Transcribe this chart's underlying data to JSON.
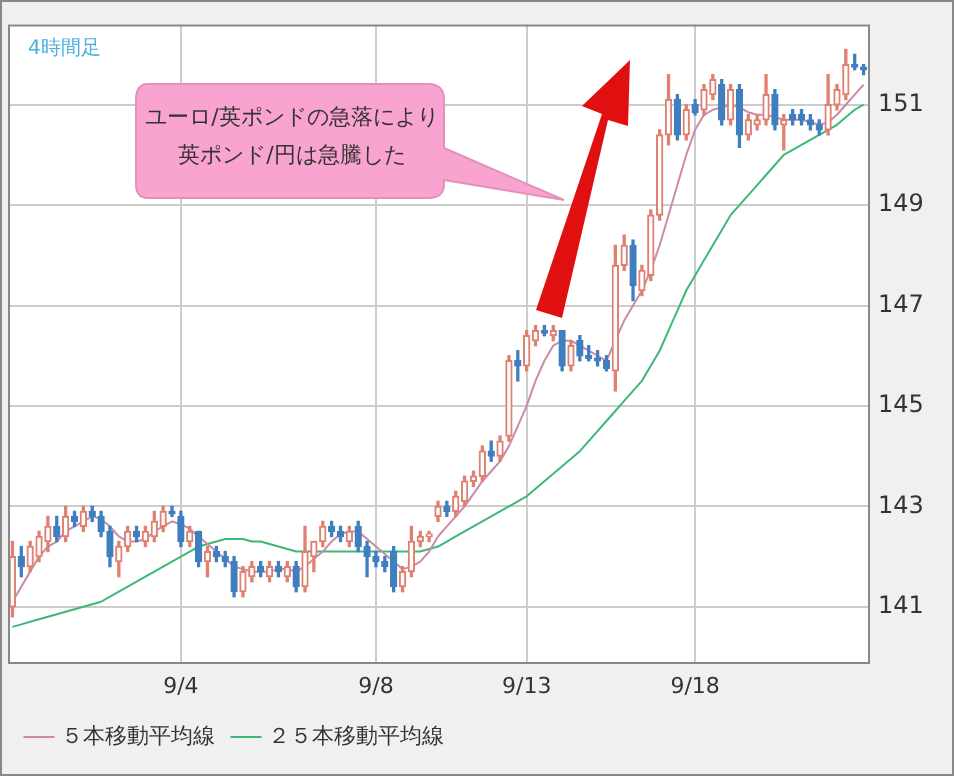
{
  "chart_data": {
    "type": "candlestick",
    "categories": [
      null,
      null,
      null,
      null,
      null,
      null,
      null,
      null,
      null,
      null,
      null,
      null,
      null,
      null,
      null,
      null,
      null,
      null,
      null,
      "9/4",
      null,
      null,
      null,
      null,
      null,
      null,
      null,
      null,
      null,
      null,
      null,
      null,
      null,
      null,
      null,
      null,
      null,
      null,
      null,
      null,
      null,
      "9/8",
      null,
      null,
      null,
      null,
      null,
      null,
      null,
      null,
      null,
      null,
      null,
      null,
      null,
      null,
      null,
      null,
      "9/13",
      null,
      null,
      null,
      null,
      null,
      null,
      null,
      null,
      null,
      null,
      null,
      null,
      null,
      null,
      null,
      null,
      null,
      null,
      "9/18",
      null,
      null,
      null,
      null,
      null,
      null,
      null,
      null,
      null,
      null,
      null,
      null,
      null,
      null,
      null,
      null,
      null,
      null,
      null
    ],
    "ohlc": [
      [
        141.0,
        142.3,
        140.8,
        142.0
      ],
      [
        142.0,
        142.2,
        141.6,
        141.8
      ],
      [
        141.8,
        142.3,
        141.7,
        142.2
      ],
      [
        142.0,
        142.5,
        141.9,
        142.4
      ],
      [
        142.3,
        142.8,
        142.1,
        142.6
      ],
      [
        142.6,
        142.8,
        142.3,
        142.4
      ],
      [
        142.4,
        143.0,
        142.3,
        142.8
      ],
      [
        142.8,
        142.9,
        142.6,
        142.7
      ],
      [
        142.6,
        143.0,
        142.5,
        142.9
      ],
      [
        142.9,
        143.0,
        142.7,
        142.8
      ],
      [
        142.8,
        142.9,
        142.4,
        142.5
      ],
      [
        142.5,
        142.6,
        141.8,
        142.0
      ],
      [
        141.9,
        142.3,
        141.6,
        142.2
      ],
      [
        142.2,
        142.6,
        142.1,
        142.5
      ],
      [
        142.5,
        142.6,
        142.3,
        142.4
      ],
      [
        142.3,
        142.6,
        142.2,
        142.5
      ],
      [
        142.4,
        142.9,
        142.3,
        142.7
      ],
      [
        142.6,
        143.0,
        142.5,
        142.9
      ],
      [
        142.9,
        143.0,
        142.8,
        142.85
      ],
      [
        142.8,
        142.9,
        142.2,
        142.3
      ],
      [
        142.3,
        142.6,
        142.2,
        142.5
      ],
      [
        142.5,
        142.5,
        141.8,
        141.9
      ],
      [
        141.9,
        142.2,
        141.6,
        142.1
      ],
      [
        142.1,
        142.2,
        141.9,
        142.0
      ],
      [
        142.0,
        142.1,
        141.8,
        141.9
      ],
      [
        141.9,
        142.0,
        141.2,
        141.3
      ],
      [
        141.3,
        141.8,
        141.2,
        141.7
      ],
      [
        141.6,
        141.9,
        141.5,
        141.8
      ],
      [
        141.8,
        141.9,
        141.6,
        141.7
      ],
      [
        141.6,
        141.9,
        141.5,
        141.8
      ],
      [
        141.8,
        141.9,
        141.6,
        141.7
      ],
      [
        141.6,
        141.9,
        141.5,
        141.8
      ],
      [
        141.8,
        141.9,
        141.3,
        141.4
      ],
      [
        141.4,
        142.6,
        141.3,
        142.1
      ],
      [
        142.0,
        142.3,
        141.7,
        142.3
      ],
      [
        142.3,
        142.7,
        142.2,
        142.6
      ],
      [
        142.6,
        142.7,
        142.4,
        142.5
      ],
      [
        142.5,
        142.6,
        142.3,
        142.4
      ],
      [
        142.3,
        142.6,
        142.2,
        142.5
      ],
      [
        142.6,
        142.7,
        142.1,
        142.2
      ],
      [
        142.2,
        142.3,
        141.6,
        142.0
      ],
      [
        142.0,
        142.1,
        141.8,
        141.9
      ],
      [
        141.9,
        142.0,
        141.7,
        141.8
      ],
      [
        142.1,
        142.2,
        141.3,
        141.4
      ],
      [
        141.4,
        141.8,
        141.3,
        141.7
      ],
      [
        141.7,
        142.6,
        141.6,
        142.3
      ],
      [
        142.3,
        142.5,
        142.2,
        142.4
      ],
      [
        142.4,
        142.5,
        142.3,
        142.45
      ],
      [
        142.8,
        143.1,
        142.7,
        143.0
      ],
      [
        143.0,
        143.1,
        142.8,
        142.9
      ],
      [
        142.9,
        143.3,
        142.8,
        143.2
      ],
      [
        143.1,
        143.6,
        143.0,
        143.5
      ],
      [
        143.5,
        143.7,
        143.4,
        143.6
      ],
      [
        143.6,
        144.2,
        143.5,
        144.1
      ],
      [
        144.1,
        144.3,
        143.9,
        144.0
      ],
      [
        144.0,
        144.4,
        143.9,
        144.3
      ],
      [
        144.4,
        146.0,
        144.3,
        145.9
      ],
      [
        145.9,
        146.1,
        145.5,
        145.8
      ],
      [
        145.8,
        146.5,
        145.7,
        146.4
      ],
      [
        146.3,
        146.6,
        146.2,
        146.5
      ],
      [
        146.5,
        146.6,
        146.4,
        146.45
      ],
      [
        146.4,
        146.6,
        146.3,
        146.5
      ],
      [
        146.5,
        146.5,
        145.7,
        145.8
      ],
      [
        145.8,
        146.3,
        145.7,
        146.2
      ],
      [
        146.3,
        146.4,
        145.9,
        146.0
      ],
      [
        146.0,
        146.2,
        145.9,
        145.95
      ],
      [
        145.95,
        146.1,
        145.8,
        145.9
      ],
      [
        145.9,
        146.0,
        145.7,
        145.75
      ],
      [
        145.7,
        148.2,
        145.3,
        147.8
      ],
      [
        147.8,
        148.4,
        147.7,
        148.2
      ],
      [
        148.2,
        148.3,
        147.1,
        147.4
      ],
      [
        147.3,
        147.8,
        147.2,
        147.7
      ],
      [
        147.6,
        148.9,
        147.5,
        148.8
      ],
      [
        148.8,
        150.5,
        148.7,
        150.4
      ],
      [
        150.4,
        151.6,
        150.2,
        151.1
      ],
      [
        151.1,
        151.2,
        150.3,
        150.4
      ],
      [
        150.4,
        151.0,
        150.3,
        150.9
      ],
      [
        151.0,
        151.1,
        150.8,
        150.85
      ],
      [
        150.9,
        151.4,
        150.8,
        151.3
      ],
      [
        151.2,
        151.6,
        151.1,
        151.5
      ],
      [
        151.4,
        151.5,
        150.6,
        150.7
      ],
      [
        150.7,
        151.4,
        150.6,
        151.3
      ],
      [
        151.3,
        151.4,
        150.15,
        150.4
      ],
      [
        150.4,
        150.8,
        150.3,
        150.7
      ],
      [
        150.6,
        150.8,
        150.5,
        150.7
      ],
      [
        150.7,
        151.6,
        150.6,
        151.2
      ],
      [
        151.2,
        151.3,
        150.5,
        150.6
      ],
      [
        150.6,
        150.8,
        150.1,
        150.7
      ],
      [
        150.8,
        150.9,
        150.6,
        150.7
      ],
      [
        150.8,
        150.9,
        150.6,
        150.7
      ],
      [
        150.7,
        150.8,
        150.5,
        150.6
      ],
      [
        150.6,
        150.7,
        150.4,
        150.5
      ],
      [
        150.5,
        151.6,
        150.4,
        151.0
      ],
      [
        151.0,
        151.4,
        150.9,
        151.3
      ],
      [
        151.2,
        152.1,
        151.1,
        151.8
      ],
      [
        151.8,
        152.0,
        151.7,
        151.75
      ],
      [
        151.75,
        151.8,
        151.6,
        151.7
      ]
    ],
    "colors": [
      "#e08070",
      "#3f7fbf",
      "#e08070",
      "#e08070",
      "#e08070",
      "#3f7fbf",
      "#e08070",
      "#3f7fbf",
      "#e08070",
      "#3f7fbf",
      "#3f7fbf",
      "#3f7fbf",
      "#e08070",
      "#e08070",
      "#3f7fbf",
      "#e08070",
      "#e08070",
      "#e08070",
      "#3f7fbf",
      "#3f7fbf",
      "#e08070",
      "#3f7fbf",
      "#e08070",
      "#3f7fbf",
      "#3f7fbf",
      "#3f7fbf",
      "#e08070",
      "#e08070",
      "#3f7fbf",
      "#e08070",
      "#3f7fbf",
      "#e08070",
      "#3f7fbf",
      "#e08070",
      "#e08070",
      "#e08070",
      "#3f7fbf",
      "#3f7fbf",
      "#e08070",
      "#3f7fbf",
      "#3f7fbf",
      "#3f7fbf",
      "#3f7fbf",
      "#3f7fbf",
      "#e08070",
      "#e08070",
      "#e08070",
      "#e08070",
      "#e08070",
      "#3f7fbf",
      "#e08070",
      "#e08070",
      "#e08070",
      "#e08070",
      "#3f7fbf",
      "#e08070",
      "#e08070",
      "#3f7fbf",
      "#e08070",
      "#e08070",
      "#3f7fbf",
      "#e08070",
      "#3f7fbf",
      "#e08070",
      "#3f7fbf",
      "#3f7fbf",
      "#3f7fbf",
      "#3f7fbf",
      "#e08070",
      "#e08070",
      "#3f7fbf",
      "#e08070",
      "#e08070",
      "#e08070",
      "#e08070",
      "#3f7fbf",
      "#e08070",
      "#3f7fbf",
      "#e08070",
      "#e08070",
      "#3f7fbf",
      "#e08070",
      "#3f7fbf",
      "#e08070",
      "#e08070",
      "#e08070",
      "#3f7fbf",
      "#e08070",
      "#3f7fbf",
      "#3f7fbf",
      "#3f7fbf",
      "#3f7fbf",
      "#e08070",
      "#e08070",
      "#e08070",
      "#3f7fbf",
      "#3f7fbf"
    ],
    "series": [
      {
        "type": "line",
        "name": "５本移動平均線",
        "color": "#c98ba8",
        "values": [
          141.1,
          141.4,
          141.7,
          142.0,
          142.2,
          142.3,
          142.5,
          142.6,
          142.7,
          142.8,
          142.75,
          142.6,
          142.4,
          142.3,
          142.3,
          142.35,
          142.5,
          142.6,
          142.7,
          142.65,
          142.55,
          142.4,
          142.25,
          142.1,
          141.95,
          141.8,
          141.75,
          141.7,
          141.7,
          141.7,
          141.75,
          141.75,
          141.7,
          141.8,
          141.95,
          142.1,
          142.3,
          142.45,
          142.5,
          142.5,
          142.35,
          142.2,
          142.05,
          141.9,
          141.75,
          141.8,
          141.9,
          142.1,
          142.4,
          142.6,
          142.8,
          143.0,
          143.25,
          143.5,
          143.7,
          143.9,
          144.2,
          144.6,
          145.0,
          145.5,
          145.9,
          146.2,
          146.3,
          146.3,
          146.2,
          146.1,
          146.0,
          145.9,
          146.3,
          146.7,
          147.0,
          147.3,
          147.7,
          148.2,
          148.8,
          149.4,
          150.0,
          150.5,
          150.8,
          150.9,
          150.95,
          151.0,
          150.95,
          150.85,
          150.8,
          150.8,
          150.75,
          150.7,
          150.7,
          150.7,
          150.65,
          150.6,
          150.65,
          150.8,
          151.0,
          151.2,
          151.4
        ]
      },
      {
        "type": "line",
        "name": "２５本移動平均線",
        "color": "#3cb878",
        "values": [
          140.6,
          140.65,
          140.7,
          140.75,
          140.8,
          140.85,
          140.9,
          140.95,
          141.0,
          141.05,
          141.1,
          141.2,
          141.3,
          141.4,
          141.5,
          141.6,
          141.7,
          141.8,
          141.9,
          142.0,
          142.1,
          142.2,
          142.25,
          142.3,
          142.35,
          142.35,
          142.35,
          142.3,
          142.3,
          142.25,
          142.2,
          142.15,
          142.1,
          142.1,
          142.1,
          142.1,
          142.1,
          142.1,
          142.1,
          142.1,
          142.1,
          142.1,
          142.1,
          142.1,
          142.1,
          142.1,
          142.1,
          142.15,
          142.2,
          142.3,
          142.4,
          142.5,
          142.6,
          142.7,
          142.8,
          142.9,
          143.0,
          143.1,
          143.2,
          143.35,
          143.5,
          143.65,
          143.8,
          143.95,
          144.1,
          144.3,
          144.5,
          144.7,
          144.9,
          145.1,
          145.3,
          145.5,
          145.8,
          146.1,
          146.5,
          146.9,
          147.3,
          147.6,
          147.9,
          148.2,
          148.5,
          148.8,
          149.0,
          149.2,
          149.4,
          149.6,
          149.8,
          150.0,
          150.1,
          150.2,
          150.3,
          150.4,
          150.5,
          150.6,
          150.75,
          150.9,
          151.0
        ]
      }
    ],
    "ylim": [
      139.9,
      152.6
    ],
    "yticks": [
      141,
      143,
      145,
      147,
      149,
      151
    ],
    "grid": true,
    "legend": "bottom left",
    "annotations": [
      "4時間足",
      "ユーロ/英ポンドの急落により英ポンド/円は急騰した"
    ]
  }
}
